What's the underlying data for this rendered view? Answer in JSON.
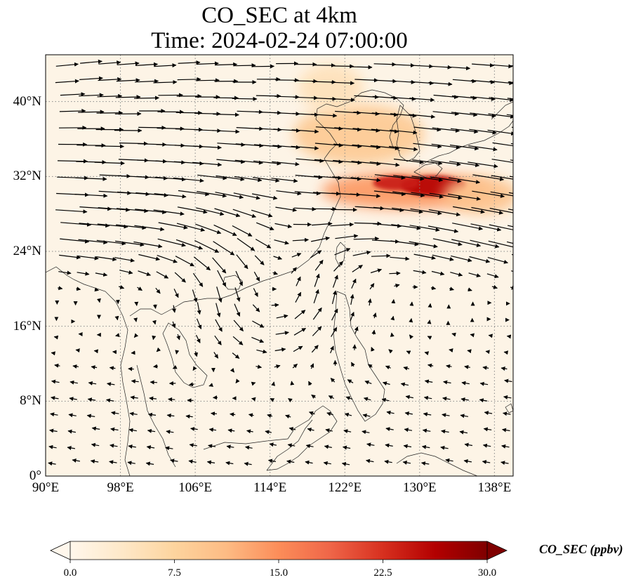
{
  "title": {
    "line1": "CO_SEC at 4km",
    "line2": "Time: 2024-02-24 07:00:00"
  },
  "map": {
    "projection": "plate-carree",
    "lon_range": [
      90,
      140
    ],
    "lat_range": [
      0,
      45
    ],
    "lat_ticks": [
      {
        "value": 0,
        "label": "0°"
      },
      {
        "value": 8,
        "label": "8°N"
      },
      {
        "value": 16,
        "label": "16°N"
      },
      {
        "value": 24,
        "label": "24°N"
      },
      {
        "value": 32,
        "label": "32°N"
      },
      {
        "value": 40,
        "label": "40°N"
      }
    ],
    "lon_ticks": [
      {
        "value": 90,
        "label": "90°E"
      },
      {
        "value": 98,
        "label": "98°E"
      },
      {
        "value": 106,
        "label": "106°E"
      },
      {
        "value": 114,
        "label": "114°E"
      },
      {
        "value": 122,
        "label": "122°E"
      },
      {
        "value": 130,
        "label": "130°E"
      },
      {
        "value": 138,
        "label": "138°E"
      }
    ],
    "gridlines": "dotted"
  },
  "colorbar": {
    "label": "CO_SEC (ppbv)",
    "min": 0.0,
    "max": 30.0,
    "extend": "both",
    "colormap": "OrRd",
    "colors": [
      "#fff7ec",
      "#fee8c8",
      "#fdd49e",
      "#fdbb84",
      "#fc8d59",
      "#ef6548",
      "#d7301f",
      "#b30000",
      "#7f0000"
    ],
    "ticks": [
      "0.0",
      "7.5",
      "15.0",
      "22.5",
      "30.0"
    ]
  },
  "field": {
    "background_color": "#fdf4e6",
    "plumes": [
      {
        "name": "north-china-plume",
        "lon": 123.5,
        "lat": 36.5,
        "rx_deg": 7,
        "ry_deg": 3.2,
        "value": 9
      },
      {
        "name": "bohai-plume",
        "lon": 120.5,
        "lat": 41.5,
        "rx_deg": 3.5,
        "ry_deg": 2.5,
        "value": 5
      },
      {
        "name": "east-sea-band",
        "lon": 128.5,
        "lat": 30.5,
        "rx_deg": 9,
        "ry_deg": 2.0,
        "value": 14
      },
      {
        "name": "japan-south-core",
        "lon": 131.5,
        "lat": 31.0,
        "rx_deg": 3.5,
        "ry_deg": 1.1,
        "value": 26
      },
      {
        "name": "kyushu-core",
        "lon": 127.5,
        "lat": 31.3,
        "rx_deg": 2.5,
        "ry_deg": 0.8,
        "value": 24
      },
      {
        "name": "pacific-band",
        "lon": 136.5,
        "lat": 30.0,
        "rx_deg": 4,
        "ry_deg": 2.0,
        "value": 10
      }
    ]
  },
  "wind_arrows": {
    "color": "#000000",
    "description": "strong westerlies north of 20°N, cyclonic eddy near 114°E 20°N, weak easterlies in the south"
  }
}
